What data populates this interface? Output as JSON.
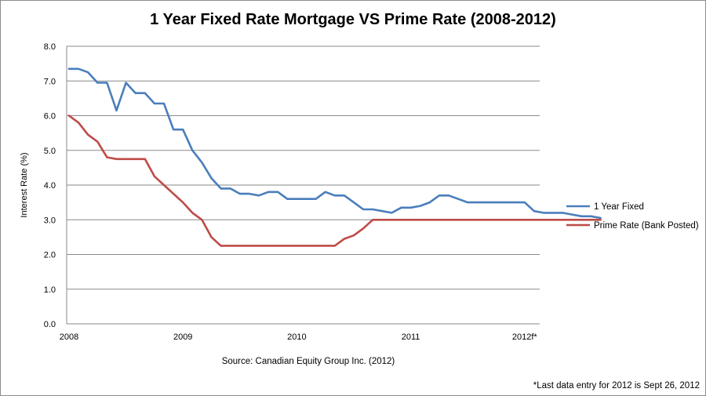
{
  "chart_data": {
    "type": "line",
    "title": "1 Year Fixed Rate Mortgage VS Prime Rate (2008-2012)",
    "xlabel": "",
    "ylabel": "Interest Rate (%)",
    "ylim": [
      0,
      8
    ],
    "yticks": [
      "0.0",
      "1.0",
      "2.0",
      "3.0",
      "4.0",
      "5.0",
      "6.0",
      "7.0",
      "8.0"
    ],
    "xtick_labels": [
      "2008",
      "2009",
      "2010",
      "2011",
      "2012f*"
    ],
    "grid": true,
    "legend_position": "right",
    "source": "Source: Canadian Equity Group Inc. (2012)",
    "footnote": "*Last data entry for 2012 is Sept 26, 2012",
    "series": [
      {
        "name": "1 Year Fixed",
        "color": "#4a7ebb",
        "values": [
          7.35,
          7.35,
          7.25,
          6.95,
          6.95,
          6.15,
          6.95,
          6.65,
          6.65,
          6.35,
          6.35,
          5.6,
          5.6,
          5.0,
          4.65,
          4.2,
          3.9,
          3.9,
          3.75,
          3.75,
          3.7,
          3.8,
          3.8,
          3.6,
          3.6,
          3.6,
          3.6,
          3.8,
          3.7,
          3.7,
          3.5,
          3.3,
          3.3,
          3.25,
          3.2,
          3.35,
          3.35,
          3.4,
          3.5,
          3.7,
          3.7,
          3.6,
          3.5,
          3.5,
          3.5,
          3.5,
          3.5,
          3.5,
          3.5,
          3.25,
          3.2,
          3.2,
          3.2,
          3.15,
          3.1,
          3.1,
          3.05
        ]
      },
      {
        "name": "Prime Rate (Bank Posted)",
        "color": "#be4b48",
        "values": [
          6.0,
          5.8,
          5.45,
          5.25,
          4.8,
          4.75,
          4.75,
          4.75,
          4.75,
          4.25,
          4.0,
          3.75,
          3.5,
          3.2,
          3.0,
          2.5,
          2.25,
          2.25,
          2.25,
          2.25,
          2.25,
          2.25,
          2.25,
          2.25,
          2.25,
          2.25,
          2.25,
          2.25,
          2.25,
          2.45,
          2.55,
          2.75,
          3.0,
          3.0,
          3.0,
          3.0,
          3.0,
          3.0,
          3.0,
          3.0,
          3.0,
          3.0,
          3.0,
          3.0,
          3.0,
          3.0,
          3.0,
          3.0,
          3.0,
          3.0,
          3.0,
          3.0,
          3.0,
          3.0,
          3.0,
          3.0,
          3.0
        ]
      }
    ]
  }
}
